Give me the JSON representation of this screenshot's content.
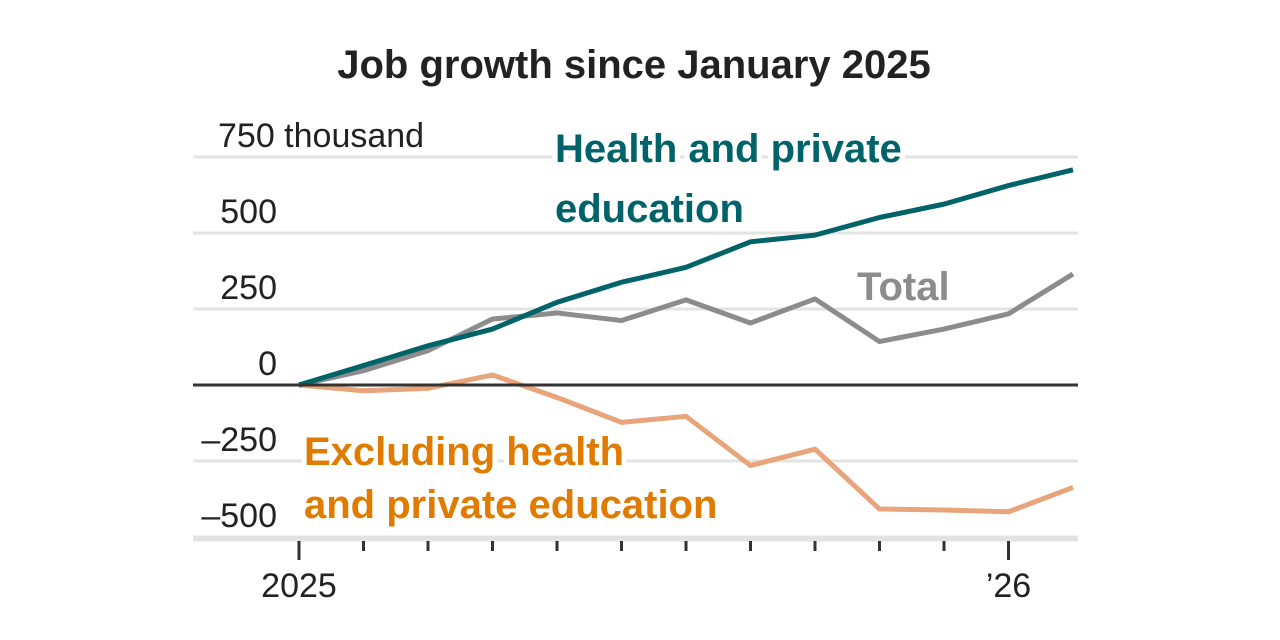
{
  "chart_data": {
    "type": "line",
    "title": "Job growth since January 2025",
    "ylabel": "",
    "xlabel": "",
    "y_unit_label": "750 thousand",
    "ylim": [
      -500,
      750
    ],
    "yticks": [
      750,
      500,
      250,
      0,
      -250,
      -500
    ],
    "ytick_labels": [
      "750 thousand",
      "500",
      "250",
      "0",
      "–250",
      "–500"
    ],
    "x_tick_count": 12,
    "x_tick_labels": [
      {
        "index": 0,
        "label": "2025"
      },
      {
        "index": 11,
        "label": "’26"
      }
    ],
    "x": [
      0,
      1,
      2,
      3,
      4,
      5,
      6,
      7,
      8,
      9,
      10,
      11,
      12
    ],
    "grid": true,
    "series": [
      {
        "name": "Health and private education",
        "label_lines": [
          "Health and private",
          "education"
        ],
        "color": "#00636a",
        "label_color": "#00636a",
        "values": [
          0,
          64,
          129,
          184,
          272,
          338,
          387,
          471,
          493,
          551,
          595,
          656,
          708
        ]
      },
      {
        "name": "Total",
        "label_lines": [
          "Total"
        ],
        "color": "#8c8c8c",
        "label_color": "#8c8c8c",
        "values": [
          0,
          47,
          113,
          217,
          237,
          212,
          280,
          204,
          283,
          143,
          184,
          234,
          365
        ]
      },
      {
        "name": "Excluding health and private education",
        "label_lines": [
          "Excluding health",
          "and private education"
        ],
        "color": "#e8a47a",
        "label_color": "#e07b00",
        "values": [
          0,
          -19,
          -11,
          33,
          -41,
          -123,
          -103,
          -265,
          -211,
          -408,
          -411,
          -417,
          -337
        ]
      }
    ]
  }
}
